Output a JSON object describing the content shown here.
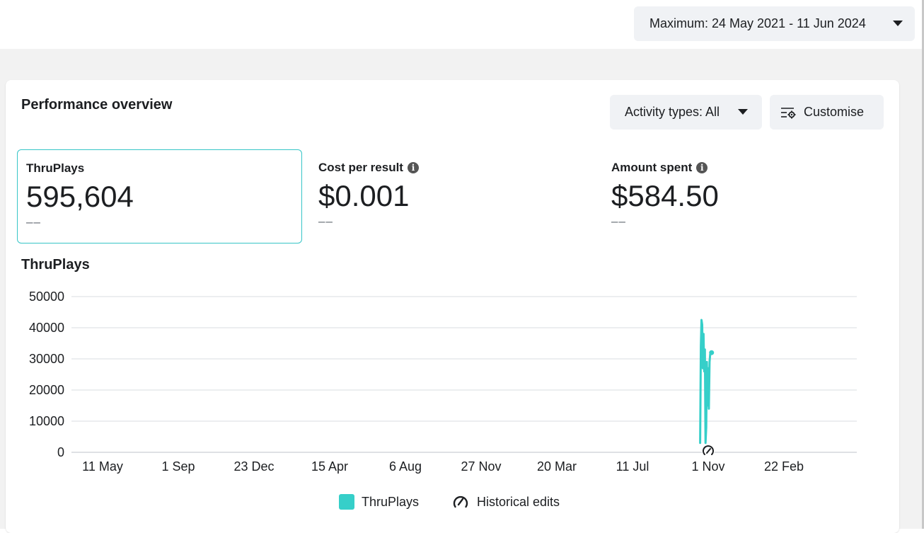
{
  "header": {
    "date_range_label": "Maximum: 24 May 2021 - 11 Jun 2024"
  },
  "overview": {
    "title": "Performance overview",
    "activity_types_label": "Activity types: All",
    "customise_label": "Customise"
  },
  "metrics": [
    {
      "label": "ThruPlays",
      "value": "595,604",
      "comparison": "––",
      "selected": true,
      "has_info": false
    },
    {
      "label": "Cost per result",
      "value": "$0.001",
      "comparison": "––",
      "selected": false,
      "has_info": true
    },
    {
      "label": "Amount spent",
      "value": "$584.50",
      "comparison": "––",
      "selected": false,
      "has_info": true
    }
  ],
  "chart_title": "ThruPlays",
  "chart_data": {
    "type": "line",
    "title": "ThruPlays",
    "xlabel": "",
    "ylabel": "",
    "ylim": [
      0,
      50000
    ],
    "yticks": [
      0,
      10000,
      20000,
      30000,
      40000,
      50000
    ],
    "xtick_labels": [
      "11 May",
      "1 Sep",
      "23 Dec",
      "15 Apr",
      "6 Aug",
      "27 Nov",
      "20 Mar",
      "11 Jul",
      "1 Nov",
      "22 Feb"
    ],
    "grid": true,
    "legend_position": "bottom",
    "series": [
      {
        "name": "ThruPlays",
        "color": "#36cfc9",
        "x": [
          "2023-10-20",
          "2023-10-21",
          "2023-10-22",
          "2023-10-23",
          "2023-10-24",
          "2023-10-25",
          "2023-10-26",
          "2023-10-27",
          "2023-10-28",
          "2023-10-29",
          "2023-10-30",
          "2023-10-31",
          "2023-11-01",
          "2023-11-02",
          "2023-11-03",
          "2023-11-04",
          "2023-11-05",
          "2023-11-06"
        ],
        "values": [
          3000,
          34000,
          42500,
          41000,
          27000,
          38000,
          26000,
          33000,
          3000,
          8000,
          29000,
          15000,
          27000,
          14000,
          29000,
          31500,
          32000,
          32000
        ]
      }
    ],
    "legend": [
      "ThruPlays",
      "Historical edits"
    ],
    "annotations": [
      {
        "type": "historical-edit",
        "x": "2023-11-01"
      }
    ]
  }
}
